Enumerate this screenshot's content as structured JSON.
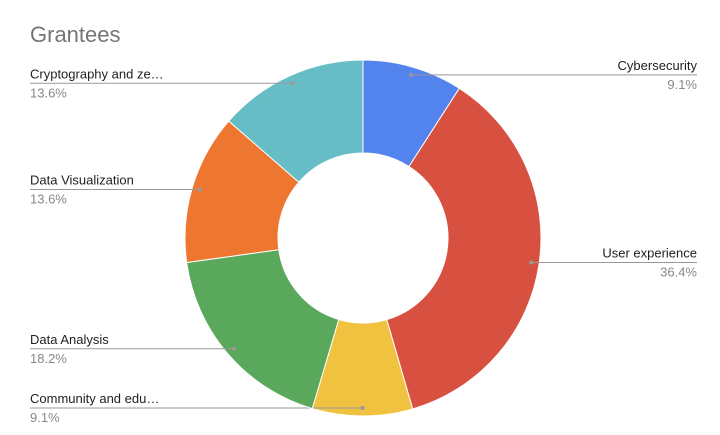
{
  "chart_data": {
    "type": "pie",
    "title": "Grantees",
    "categories": [
      "Cybersecurity",
      "User experience",
      "Community and edu…",
      "Data Analysis",
      "Data Visualization",
      "Cryptography and ze…"
    ],
    "values": [
      9.1,
      36.4,
      9.1,
      18.2,
      13.6,
      13.6
    ],
    "value_labels": [
      "9.1%",
      "36.4%",
      "9.1%",
      "18.2%",
      "13.6%",
      "13.6%"
    ],
    "colors": [
      "#5383ec",
      "#d85140",
      "#f1c140",
      "#59a85b",
      "#ed7631",
      "#67bdc5"
    ],
    "donut": true
  }
}
